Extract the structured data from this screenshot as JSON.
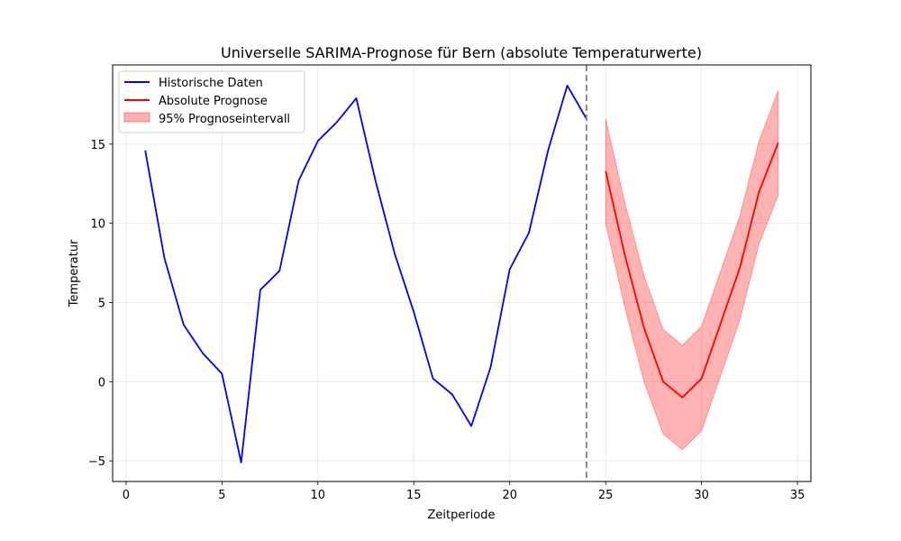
{
  "chart_data": {
    "type": "line",
    "title": "Universelle SARIMA-Prognose für Bern (absolute Temperaturwerte)",
    "xlabel": "Zeitperiode",
    "ylabel": "Temperatur",
    "xlim": [
      -0.7,
      35.7
    ],
    "ylim": [
      -6.3,
      20.0
    ],
    "xticks": [
      0,
      5,
      10,
      15,
      20,
      25,
      30,
      35
    ],
    "yticks": [
      -5,
      0,
      5,
      10,
      15
    ],
    "grid": true,
    "legend_position": "top-left",
    "forecast_start_line": 24,
    "series": [
      {
        "name": "Historische Daten",
        "color": "#0000ff",
        "x": [
          1,
          2,
          3,
          4,
          5,
          6,
          7,
          8,
          9,
          10,
          11,
          12,
          13,
          14,
          15,
          16,
          17,
          18,
          19,
          20,
          21,
          22,
          23,
          24
        ],
        "y": [
          14.6,
          7.8,
          3.6,
          1.8,
          0.5,
          -5.1,
          5.8,
          7.0,
          12.7,
          15.2,
          16.4,
          17.9,
          12.7,
          8.1,
          4.4,
          0.2,
          -0.8,
          -2.8,
          0.9,
          7.1,
          9.4,
          14.6,
          18.7,
          16.6
        ]
      },
      {
        "name": "Absolute Prognose",
        "color": "#ff0000",
        "x": [
          25,
          26,
          27,
          28,
          29,
          30,
          31,
          32,
          33,
          34
        ],
        "y": [
          13.3,
          8.0,
          3.4,
          0.0,
          -1.0,
          0.2,
          3.7,
          7.2,
          12.0,
          15.1
        ]
      }
    ],
    "interval": {
      "name": "95% Prognoseintervall",
      "color": "#ff0000",
      "x": [
        25,
        26,
        27,
        28,
        29,
        30,
        31,
        32,
        33,
        34
      ],
      "lower": [
        10.0,
        4.7,
        0.0,
        -3.3,
        -4.3,
        -3.1,
        0.4,
        3.9,
        8.7,
        11.8
      ],
      "upper": [
        16.6,
        11.3,
        6.7,
        3.3,
        2.3,
        3.5,
        7.0,
        10.5,
        15.2,
        18.4
      ]
    }
  }
}
